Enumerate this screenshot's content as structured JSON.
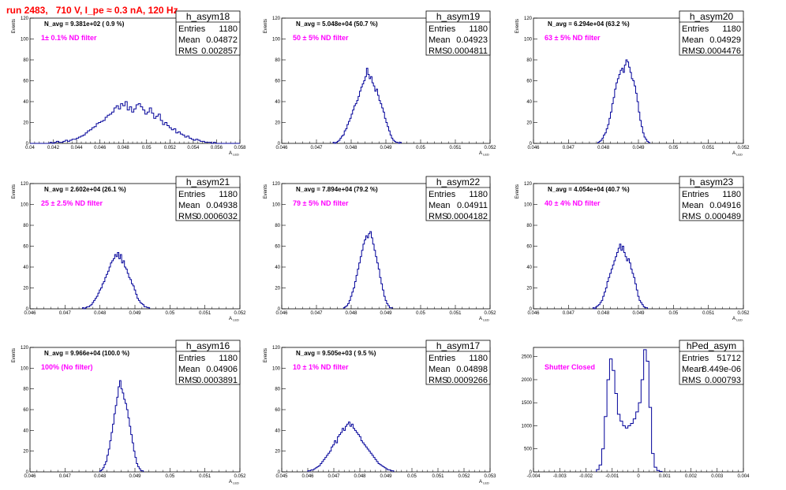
{
  "header": {
    "title": "run 2483,   710 V, I_pe ≈ 0.3 nA, 120 Hz"
  },
  "chart_data": [
    {
      "type": "histogram",
      "name": "h_asym18",
      "navg": "N_avg = 9.381e+02 ( 0.9 %)",
      "filter": "1± 0.1% ND filter",
      "stats": {
        "entries": "1180",
        "mean": "0.04872",
        "rms": "0.002857"
      },
      "xlabel": "A_LED",
      "ylabel": "Events",
      "xlim": [
        0.04,
        0.059
      ],
      "ylim": [
        0,
        120
      ],
      "xticks": [
        "0.04",
        "0.042",
        "0.044",
        "0.046",
        "0.048",
        "0.05",
        "0.052",
        "0.054",
        "0.056",
        "0.058"
      ],
      "yticks": [
        "0",
        "20",
        "40",
        "60",
        "80",
        "100",
        "120"
      ],
      "bins": {
        "x0": 0.04,
        "width": 0.0002,
        "counts": [
          0,
          0,
          0,
          0,
          0,
          0,
          0,
          0,
          0,
          1,
          0,
          1,
          2,
          1,
          1,
          2,
          3,
          2,
          3,
          4,
          4,
          5,
          6,
          7,
          8,
          10,
          12,
          13,
          15,
          16,
          19,
          20,
          21,
          22,
          25,
          27,
          28,
          30,
          34,
          36,
          33,
          38,
          36,
          40,
          32,
          35,
          30,
          33,
          37,
          38,
          35,
          32,
          28,
          30,
          34,
          29,
          24,
          26,
          28,
          22,
          18,
          20,
          17,
          15,
          13,
          14,
          10,
          11,
          9,
          8,
          6,
          7,
          5,
          4,
          3,
          4,
          3,
          2,
          2,
          1,
          1,
          1,
          0,
          1,
          0,
          0,
          0,
          0,
          0,
          0,
          0,
          0,
          0,
          0,
          0
        ]
      }
    },
    {
      "type": "histogram",
      "name": "h_asym19",
      "navg": "N_avg = 5.048e+04 (50.7 %)",
      "filter": "50 ± 5% ND filter",
      "stats": {
        "entries": "1180",
        "mean": "0.04923",
        "rms": "0.0004811"
      },
      "xlabel": "A_LED",
      "ylabel": "Events",
      "xlim": [
        0.046,
        0.052
      ],
      "ylim": [
        0,
        120
      ],
      "xticks": [
        "0.046",
        "0.047",
        "0.048",
        "0.049",
        "0.05",
        "0.051",
        "0.052"
      ],
      "yticks": [
        "0",
        "20",
        "40",
        "60",
        "80",
        "100",
        "120"
      ],
      "bins": {
        "x0": 0.04748,
        "width": 4e-05,
        "counts": [
          1,
          0,
          1,
          2,
          3,
          5,
          7,
          8,
          12,
          14,
          18,
          21,
          24,
          28,
          32,
          36,
          38,
          41,
          45,
          50,
          54,
          57,
          60,
          64,
          72,
          66,
          62,
          64,
          58,
          55,
          50,
          52,
          46,
          41,
          38,
          34,
          30,
          24,
          20,
          16,
          12,
          8,
          5,
          3,
          2,
          1,
          1,
          0,
          1
        ]
      }
    },
    {
      "type": "histogram",
      "name": "h_asym20",
      "navg": "N_avg = 6.294e+04 (63.2 %)",
      "filter": "63 ± 5% ND filter",
      "stats": {
        "entries": "1180",
        "mean": "0.04929",
        "rms": "0.0004476"
      },
      "xlabel": "A_LED",
      "ylabel": "Events",
      "xlim": [
        0.046,
        0.052
      ],
      "ylim": [
        0,
        120
      ],
      "xticks": [
        "0.046",
        "0.047",
        "0.048",
        "0.049",
        "0.05",
        "0.051",
        "0.052"
      ],
      "yticks": [
        "0",
        "20",
        "40",
        "60",
        "80",
        "100",
        "120"
      ],
      "bins": {
        "x0": 0.04784,
        "width": 4e-05,
        "counts": [
          1,
          2,
          3,
          5,
          8,
          10,
          14,
          18,
          24,
          30,
          38,
          44,
          52,
          58,
          62,
          66,
          70,
          72,
          68,
          75,
          80,
          78,
          73,
          68,
          62,
          60,
          55,
          48,
          40,
          30,
          22,
          16,
          10,
          6,
          4,
          2,
          1
        ]
      }
    },
    {
      "type": "histogram",
      "name": "h_asym21",
      "navg": "N_avg = 2.602e+04 (26.1 %)",
      "filter": "25 ± 2.5% ND filter",
      "stats": {
        "entries": "1180",
        "mean": "0.04938",
        "rms": "0.0006032"
      },
      "xlabel": "A_LED",
      "ylabel": "Events",
      "xlim": [
        0.046,
        0.052
      ],
      "ylim": [
        0,
        120
      ],
      "xticks": [
        "0.046",
        "0.047",
        "0.048",
        "0.049",
        "0.05",
        "0.051",
        "0.052"
      ],
      "yticks": [
        "0",
        "20",
        "40",
        "60",
        "80",
        "100",
        "120"
      ],
      "bins": {
        "x0": 0.0475,
        "width": 4e-05,
        "counts": [
          1,
          0,
          1,
          2,
          2,
          3,
          4,
          6,
          8,
          10,
          12,
          15,
          18,
          20,
          24,
          26,
          30,
          33,
          36,
          40,
          44,
          46,
          48,
          52,
          50,
          54,
          48,
          52,
          44,
          46,
          40,
          38,
          34,
          30,
          28,
          24,
          22,
          18,
          14,
          10,
          8,
          6,
          5,
          4,
          2,
          2,
          1,
          1
        ]
      }
    },
    {
      "type": "histogram",
      "name": "h_asym22",
      "navg": "N_avg = 7.894e+04 (79.2 %)",
      "filter": "79 ± 5% ND filter",
      "stats": {
        "entries": "1180",
        "mean": "0.04911",
        "rms": "0.0004182"
      },
      "xlabel": "A_LED",
      "ylabel": "Events",
      "xlim": [
        0.046,
        0.052
      ],
      "ylim": [
        0,
        120
      ],
      "xticks": [
        "0.046",
        "0.047",
        "0.048",
        "0.049",
        "0.05",
        "0.051",
        "0.052"
      ],
      "yticks": [
        "0",
        "20",
        "40",
        "60",
        "80",
        "100",
        "120"
      ],
      "bins": {
        "x0": 0.04778,
        "width": 4e-05,
        "counts": [
          1,
          2,
          3,
          5,
          8,
          12,
          16,
          20,
          26,
          32,
          38,
          44,
          50,
          56,
          62,
          66,
          70,
          68,
          72,
          74,
          68,
          62,
          56,
          50,
          44,
          38,
          30,
          24,
          18,
          12,
          8,
          5,
          3,
          1,
          1
        ]
      }
    },
    {
      "type": "histogram",
      "name": "h_asym23",
      "navg": "N_avg = 4.054e+04 (40.7 %)",
      "filter": "40 ± 4% ND filter",
      "stats": {
        "entries": "1180",
        "mean": "0.04916",
        "rms": "0.000489"
      },
      "xlabel": "A_LED",
      "ylabel": "Events",
      "xlim": [
        0.046,
        0.052
      ],
      "ylim": [
        0,
        120
      ],
      "xticks": [
        "0.046",
        "0.047",
        "0.048",
        "0.049",
        "0.05",
        "0.051",
        "0.052"
      ],
      "yticks": [
        "0",
        "20",
        "40",
        "60",
        "80",
        "100",
        "120"
      ],
      "bins": {
        "x0": 0.0477,
        "width": 4e-05,
        "counts": [
          1,
          0,
          2,
          3,
          4,
          6,
          8,
          12,
          16,
          20,
          26,
          30,
          34,
          38,
          42,
          46,
          50,
          54,
          58,
          62,
          56,
          60,
          54,
          50,
          46,
          48,
          44,
          38,
          34,
          30,
          24,
          18,
          12,
          8,
          6,
          4,
          2,
          1,
          1
        ]
      }
    },
    {
      "type": "histogram",
      "name": "h_asym16",
      "navg": "N_avg = 9.966e+04 (100.0 %)",
      "filter": "100% (No filter)",
      "stats": {
        "entries": "1180",
        "mean": "0.04906",
        "rms": "0.0003891"
      },
      "xlabel": "A_LED",
      "ylabel": "Events",
      "xlim": [
        0.046,
        0.052
      ],
      "ylim": [
        0,
        120
      ],
      "xticks": [
        "0.046",
        "0.047",
        "0.048",
        "0.049",
        "0.05",
        "0.051",
        "0.052"
      ],
      "yticks": [
        "0",
        "20",
        "40",
        "60",
        "80",
        "100",
        "120"
      ],
      "bins": {
        "x0": 0.048,
        "width": 4e-05,
        "counts": [
          1,
          2,
          4,
          7,
          10,
          16,
          22,
          30,
          38,
          46,
          56,
          64,
          72,
          82,
          88,
          80,
          76,
          70,
          66,
          60,
          52,
          44,
          36,
          28,
          20,
          14,
          8,
          5,
          3,
          1,
          1
        ]
      }
    },
    {
      "type": "histogram",
      "name": "h_asym17",
      "navg": "N_avg = 9.505e+03 ( 9.5 %)",
      "filter": "10 ± 1% ND filter",
      "stats": {
        "entries": "1180",
        "mean": "0.04898",
        "rms": "0.0009266"
      },
      "xlabel": "A_LED",
      "ylabel": "Events",
      "xlim": [
        0.045,
        0.053
      ],
      "ylim": [
        0,
        120
      ],
      "xticks": [
        "0.045",
        "0.046",
        "0.047",
        "0.048",
        "0.049",
        "0.05",
        "0.051",
        "0.052",
        "0.053"
      ],
      "yticks": [
        "0",
        "20",
        "40",
        "60",
        "80",
        "100",
        "120"
      ],
      "bins": {
        "x0": 0.046,
        "width": 6e-05,
        "counts": [
          1,
          1,
          2,
          2,
          3,
          4,
          5,
          6,
          8,
          10,
          12,
          14,
          16,
          18,
          20,
          24,
          26,
          30,
          28,
          34,
          36,
          38,
          42,
          40,
          44,
          46,
          48,
          44,
          46,
          42,
          40,
          38,
          36,
          34,
          30,
          28,
          26,
          24,
          22,
          20,
          18,
          16,
          14,
          12,
          10,
          8,
          7,
          6,
          5,
          4,
          3,
          2,
          2,
          1,
          1
        ]
      }
    },
    {
      "type": "histogram",
      "name": "hPed_asym",
      "navg": "",
      "filter": "Shutter Closed",
      "stats": {
        "entries": "51712",
        "mean": "8.449e-06",
        "rms": "0.000793"
      },
      "xlabel": "",
      "ylabel": "",
      "xlim": [
        -0.004,
        0.004
      ],
      "ylim": [
        0,
        2700
      ],
      "xticks": [
        "-0.004",
        "-0.003",
        "-0.002",
        "-0.001",
        "0",
        "0.001",
        "0.002",
        "0.003",
        "0.004"
      ],
      "yticks": [
        "0",
        "500",
        "1000",
        "1500",
        "2000",
        "2500"
      ],
      "bins": {
        "x0": -0.0016,
        "width": 0.0001,
        "counts": [
          50,
          150,
          500,
          1200,
          2000,
          2450,
          2200,
          1700,
          1250,
          1100,
          1000,
          950,
          1000,
          1050,
          1150,
          1300,
          1500,
          2000,
          2650,
          2400,
          1400,
          400,
          100,
          30,
          10
        ]
      }
    }
  ]
}
